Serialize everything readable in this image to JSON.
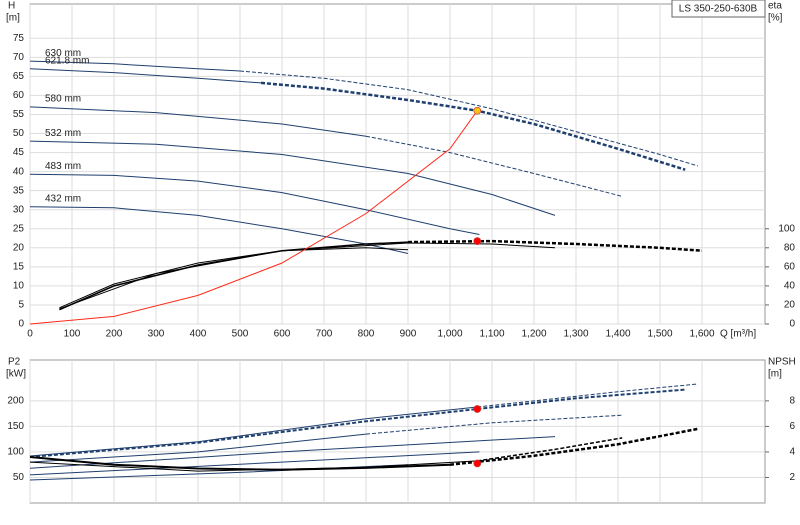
{
  "chart_data": [
    {
      "type": "line",
      "title": "LS 350-250-630B",
      "ylabel": "H",
      "yunit": "[m]",
      "y2label": "eta",
      "y2unit": "[%]",
      "xlabel": "Q [m³/h]",
      "xlim": [
        0,
        1750
      ],
      "ylim": [
        0,
        84
      ],
      "y2lim": [
        0,
        336
      ],
      "xticks": [
        0,
        100,
        200,
        300,
        400,
        500,
        600,
        700,
        800,
        900,
        {
          "value": 1000,
          "label": "1,000"
        },
        {
          "value": 1100,
          "label": "1,100"
        },
        {
          "value": 1200,
          "label": "1,200"
        },
        {
          "value": 1300,
          "label": "1,300"
        },
        {
          "value": 1400,
          "label": "1,400"
        },
        {
          "value": 1500,
          "label": "1,500"
        },
        {
          "value": 1600,
          "label": "1,600"
        }
      ],
      "yticks": [
        0,
        5,
        10,
        15,
        20,
        25,
        30,
        35,
        40,
        45,
        50,
        55,
        60,
        65,
        70,
        75
      ],
      "y2ticks": [
        0,
        20,
        40,
        60,
        80,
        100
      ],
      "grid": true,
      "series": [
        {
          "name": "630 mm",
          "color": "#1f3f6e",
          "dashed": false,
          "width": 1,
          "x": [
            0,
            200,
            400,
            500
          ],
          "values": [
            69,
            68.3,
            67,
            66.4
          ]
        },
        {
          "color": "#1f3f6e",
          "dashed": true,
          "width": 1,
          "x": [
            500,
            700,
            900,
            1100,
            1300,
            1500,
            1590
          ],
          "values": [
            66.4,
            64.5,
            61.5,
            56.5,
            50.5,
            44.5,
            41.5
          ]
        },
        {
          "name": "621.8 mm",
          "color": "#1f3f6e",
          "dashed": false,
          "width": 1,
          "x": [
            0,
            200,
            400,
            550
          ],
          "values": [
            67,
            66,
            64.5,
            63.3
          ]
        },
        {
          "color": "#1f3f6e",
          "dashed": true,
          "width": 2.5,
          "x": [
            550,
            700,
            900,
            1065,
            1200,
            1400,
            1560
          ],
          "values": [
            63.3,
            61.8,
            58.8,
            56,
            52.5,
            46,
            40.5
          ]
        },
        {
          "name": "580 mm",
          "color": "#1f3f6e",
          "dashed": false,
          "width": 1,
          "x": [
            0,
            300,
            600,
            800
          ],
          "values": [
            57,
            55.5,
            52.5,
            49.3
          ]
        },
        {
          "color": "#1f3f6e",
          "dashed": true,
          "width": 1,
          "x": [
            800,
            1000,
            1200,
            1410
          ],
          "values": [
            49.3,
            45,
            39.5,
            33.5
          ]
        },
        {
          "name": "532 mm",
          "color": "#1f3f6e",
          "dashed": false,
          "width": 1,
          "x": [
            0,
            300,
            600,
            900,
            1100,
            1250
          ],
          "values": [
            48,
            47.2,
            44.5,
            39.5,
            34,
            28.5
          ]
        },
        {
          "name": "483 mm",
          "color": "#1f3f6e",
          "dashed": false,
          "width": 1,
          "x": [
            0,
            200,
            400,
            600,
            800,
            1000,
            1070
          ],
          "values": [
            39.3,
            39,
            37.5,
            34.5,
            30,
            25,
            23.5
          ]
        },
        {
          "name": "432 mm",
          "color": "#1f3f6e",
          "dashed": false,
          "width": 1,
          "x": [
            0,
            200,
            400,
            600,
            800,
            900
          ],
          "values": [
            30.8,
            30.5,
            28.5,
            25,
            21,
            18.5
          ]
        },
        {
          "color": "#000000",
          "dashed": false,
          "width": 1.5,
          "axis": "y2",
          "x": [
            70,
            200,
            400,
            600,
            800,
            900
          ],
          "values": [
            15,
            40,
            62,
            77,
            84,
            86
          ]
        },
        {
          "color": "#000000",
          "dashed": true,
          "width": 2.5,
          "axis": "y2",
          "x": [
            900,
            1100,
            1300,
            1500,
            1600
          ],
          "values": [
            86,
            87,
            84,
            80,
            77
          ]
        },
        {
          "color": "#000000",
          "dashed": false,
          "width": 1,
          "axis": "y2",
          "x": [
            70,
            200,
            400,
            600,
            800,
            900
          ],
          "values": [
            17,
            42,
            64,
            77,
            80,
            78
          ]
        },
        {
          "color": "#000000",
          "dashed": false,
          "width": 1,
          "axis": "y2",
          "x": [
            70,
            300,
            600,
            900,
            1100,
            1250
          ],
          "values": [
            16,
            53,
            77,
            85,
            84,
            80
          ]
        },
        {
          "color": "#ff2a1a",
          "dashed": false,
          "width": 1,
          "x": [
            0,
            200,
            400,
            600,
            800,
            1000,
            1065
          ],
          "values": [
            0,
            2,
            7.5,
            16,
            29,
            46,
            56
          ]
        }
      ],
      "points": [
        {
          "x": 1065,
          "y": 56,
          "color": "#f5c518"
        },
        {
          "x": 1065,
          "y": 87,
          "axis": "y2",
          "color": "#ff0000"
        }
      ]
    },
    {
      "type": "line",
      "ylabel": "P2",
      "yunit": "[kW]",
      "y2label": "NPSH",
      "y2unit": "[m]",
      "xlim": [
        0,
        1750
      ],
      "ylim": [
        0,
        280
      ],
      "y2lim": [
        0,
        11.2
      ],
      "xticks": [
        0,
        100,
        200,
        300,
        400,
        500,
        600,
        700,
        800,
        900,
        1000,
        1100,
        1200,
        1300,
        1400,
        1500,
        1600
      ],
      "yticks": [
        50,
        100,
        150,
        200
      ],
      "y2ticks": [
        2,
        4,
        6,
        8
      ],
      "grid": true,
      "series": [
        {
          "color": "#1f3f6e",
          "dashed": false,
          "width": 1,
          "x": [
            0,
            400,
            800,
            1065
          ],
          "values": [
            92,
            120,
            165,
            188
          ]
        },
        {
          "color": "#1f3f6e",
          "dashed": true,
          "width": 1,
          "x": [
            1065,
            1200,
            1400,
            1590
          ],
          "values": [
            188,
            200,
            218,
            233
          ]
        },
        {
          "color": "#1f3f6e",
          "dashed": true,
          "width": 2,
          "x": [
            0,
            400,
            800,
            1065,
            1300,
            1560
          ],
          "values": [
            90,
            118,
            160,
            184,
            205,
            222
          ]
        },
        {
          "color": "#1f3f6e",
          "dashed": false,
          "width": 1,
          "x": [
            0,
            400,
            800
          ],
          "values": [
            80,
            100,
            135
          ]
        },
        {
          "color": "#1f3f6e",
          "dashed": true,
          "width": 1,
          "x": [
            800,
            1100,
            1410
          ],
          "values": [
            135,
            157,
            172
          ]
        },
        {
          "color": "#1f3f6e",
          "dashed": false,
          "width": 1,
          "x": [
            0,
            600,
            1250
          ],
          "values": [
            68,
            100,
            130
          ]
        },
        {
          "color": "#1f3f6e",
          "dashed": false,
          "width": 1,
          "x": [
            0,
            600,
            1070
          ],
          "values": [
            55,
            80,
            100
          ]
        },
        {
          "color": "#1f3f6e",
          "dashed": false,
          "width": 1,
          "x": [
            0,
            500,
            900
          ],
          "values": [
            45,
            60,
            75
          ]
        },
        {
          "color": "#000000",
          "dashed": false,
          "width": 2,
          "axis": "y2",
          "x": [
            0,
            200,
            400,
            600,
            800,
            1000
          ],
          "values": [
            3.6,
            3.0,
            2.7,
            2.6,
            2.75,
            3.0
          ]
        },
        {
          "color": "#000000",
          "dashed": true,
          "width": 2.5,
          "axis": "y2",
          "x": [
            1000,
            1200,
            1400,
            1590
          ],
          "values": [
            3.0,
            3.7,
            4.6,
            5.8
          ]
        },
        {
          "color": "#000000",
          "dashed": false,
          "width": 1,
          "axis": "y2",
          "x": [
            0,
            400,
            800,
            1065
          ],
          "values": [
            3.2,
            2.5,
            2.8,
            3.3
          ]
        },
        {
          "color": "#000000",
          "dashed": true,
          "width": 1.5,
          "axis": "y2",
          "x": [
            1065,
            1250,
            1410
          ],
          "values": [
            3.3,
            4.2,
            5.1
          ]
        }
      ],
      "points": [
        {
          "x": 1065,
          "y": 184,
          "color": "#ff0000"
        },
        {
          "x": 1065,
          "y": 3.1,
          "axis": "y2",
          "color": "#ff0000"
        }
      ]
    }
  ]
}
